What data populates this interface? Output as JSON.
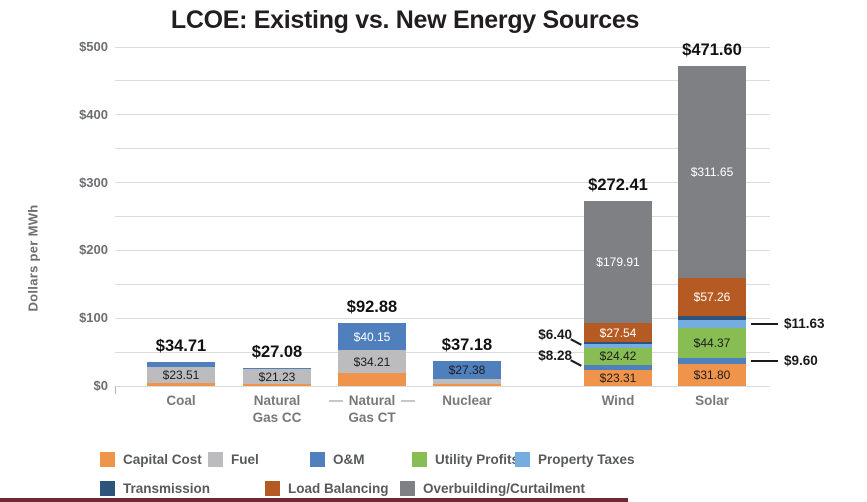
{
  "title": "LCOE: Existing vs. New Energy Sources",
  "y_axis": {
    "label": "Dollars per MWh"
  },
  "legend": {
    "rows": [
      [
        {
          "label": "Capital Cost",
          "color": "#F0944B"
        },
        {
          "label": "Fuel",
          "color": "#BCBCBE"
        },
        {
          "label": "O&M",
          "color": "#4F7FBD"
        },
        {
          "label": "Utility Profits",
          "color": "#87BD52"
        },
        {
          "label": "Property Taxes",
          "color": "#76ADE0"
        }
      ],
      [
        {
          "label": "Transmission",
          "color": "#2E547B"
        },
        {
          "label": "Load Balancing",
          "color": "#B65A24"
        },
        {
          "label": "Overbuilding/Curtailment",
          "color": "#7F8083"
        }
      ]
    ]
  },
  "chart_data": {
    "type": "bar",
    "stacked": true,
    "title": "LCOE: Existing vs. New Energy Sources",
    "xlabel": "",
    "ylabel": "Dollars per MWh",
    "ylim": [
      0,
      500
    ],
    "grid": true,
    "grid_step_minor": 50,
    "yticks": [
      {
        "label": "$0",
        "value": 0
      },
      {
        "label": "$100",
        "value": 100
      },
      {
        "label": "$200",
        "value": 200
      },
      {
        "label": "$300",
        "value": 300
      },
      {
        "label": "$400",
        "value": 400
      },
      {
        "label": "$500",
        "value": 500
      }
    ],
    "categories": [
      "Coal",
      "Natural Gas CC",
      "Natural Gas CT",
      "Nuclear",
      "Wind",
      "Solar"
    ],
    "category_label_lines": [
      {
        "lines": [
          "Coal"
        ],
        "dashes": false
      },
      {
        "lines": [
          "Natural",
          "Gas CC"
        ],
        "dashes": false
      },
      {
        "lines": [
          "Natural",
          "Gas CT"
        ],
        "dashes": true
      },
      {
        "lines": [
          "Nuclear"
        ],
        "dashes": false
      },
      {
        "lines": [
          "Wind"
        ],
        "dashes": false
      },
      {
        "lines": [
          "Solar"
        ],
        "dashes": false
      }
    ],
    "totals": [
      34.71,
      27.08,
      92.88,
      37.18,
      272.41,
      471.6
    ],
    "total_labels": [
      "$34.71",
      "$27.08",
      "$92.88",
      "$37.18",
      "$272.41",
      "$471.60"
    ],
    "series": [
      {
        "name": "Capital Cost",
        "color": "#F0944B",
        "values": [
          5.0,
          3.35,
          18.52,
          3.0,
          23.31,
          31.8
        ],
        "note": "unlabeled values for Coal, Natural Gas CC, Nuclear estimated from bar pixels"
      },
      {
        "name": "Fuel",
        "color": "#BCBCBE",
        "values": [
          23.51,
          21.23,
          34.21,
          6.8,
          0,
          0
        ]
      },
      {
        "name": "O&M",
        "color": "#4F7FBD",
        "values": [
          6.2,
          2.5,
          40.15,
          27.38,
          8.28,
          9.6
        ]
      },
      {
        "name": "Utility Profits",
        "color": "#87BD52",
        "values": [
          0,
          0,
          0,
          0,
          24.42,
          44.37
        ]
      },
      {
        "name": "Property Taxes",
        "color": "#76ADE0",
        "values": [
          0,
          0,
          0,
          0,
          6.4,
          11.63
        ]
      },
      {
        "name": "Transmission",
        "color": "#2E547B",
        "values": [
          0,
          0,
          0,
          0,
          2.55,
          5.29
        ],
        "note": "thin unlabeled slivers estimated so stacks equal printed totals"
      },
      {
        "name": "Load Balancing",
        "color": "#B65A24",
        "values": [
          0,
          0,
          0,
          0,
          27.54,
          57.26
        ]
      },
      {
        "name": "Overbuilding/Curtailment",
        "color": "#7F8083",
        "values": [
          0,
          0,
          0,
          0,
          179.91,
          311.65
        ]
      }
    ],
    "segment_labels": [
      {
        "cat": 0,
        "series": "Fuel",
        "text": "$23.51",
        "tone": "dark"
      },
      {
        "cat": 1,
        "series": "Fuel",
        "text": "$21.23",
        "tone": "dark"
      },
      {
        "cat": 2,
        "series": "O&M",
        "text": "$40.15",
        "tone": "light"
      },
      {
        "cat": 2,
        "series": "Fuel",
        "text": "$34.21",
        "tone": "dark"
      },
      {
        "cat": 3,
        "series": "O&M",
        "text": "$27.38",
        "tone": "dark"
      },
      {
        "cat": 4,
        "series": "Overbuilding/Curtailment",
        "text": "$179.91",
        "tone": "light"
      },
      {
        "cat": 4,
        "series": "Load Balancing",
        "text": "$27.54",
        "tone": "light"
      },
      {
        "cat": 4,
        "series": "Utility Profits",
        "text": "$24.42",
        "tone": "dark"
      },
      {
        "cat": 4,
        "series": "Capital Cost",
        "text": "$23.31",
        "tone": "dark"
      },
      {
        "cat": 5,
        "series": "Overbuilding/Curtailment",
        "text": "$311.65",
        "tone": "light"
      },
      {
        "cat": 5,
        "series": "Load Balancing",
        "text": "$57.26",
        "tone": "light"
      },
      {
        "cat": 5,
        "series": "Utility Profits",
        "text": "$44.37",
        "tone": "dark"
      },
      {
        "cat": 5,
        "series": "Capital Cost",
        "text": "$31.80",
        "tone": "dark"
      }
    ],
    "callouts": [
      {
        "cat": 4,
        "series": "Property Taxes",
        "text": "$6.40",
        "side": "left"
      },
      {
        "cat": 4,
        "series": "O&M",
        "text": "$8.28",
        "side": "left"
      },
      {
        "cat": 5,
        "series": "Property Taxes",
        "text": "$11.63",
        "side": "right"
      },
      {
        "cat": 5,
        "series": "O&M",
        "text": "$9.60",
        "side": "right"
      }
    ],
    "legend_position": "bottom"
  }
}
